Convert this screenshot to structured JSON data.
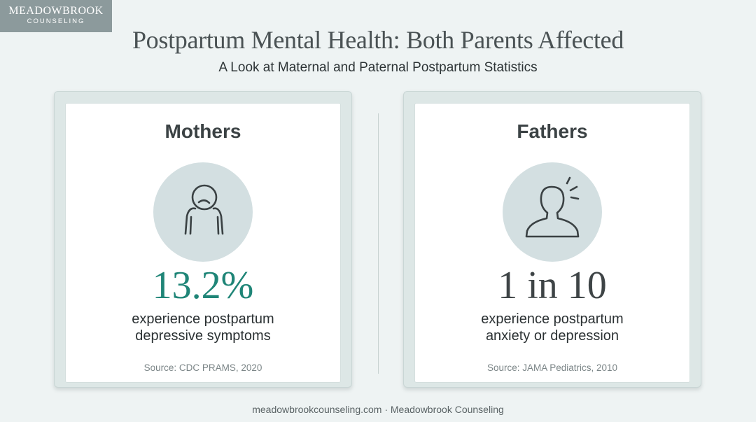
{
  "brand": {
    "name": "MEADOWBROOK",
    "sub": "COUNSELING"
  },
  "header": {
    "title": "Postpartum Mental Health: Both Parents Affected",
    "subtitle": "A Look at Maternal and Paternal Postpartum Statistics"
  },
  "cards": [
    {
      "heading": "Mothers",
      "icon": "sad-person-icon",
      "stat": "13.2%",
      "stat_color": "#1f8577",
      "desc_line1": "experience postpartum",
      "desc_line2": "depressive symptoms",
      "source": "Source: CDC PRAMS, 2020"
    },
    {
      "heading": "Fathers",
      "icon": "stressed-person-icon",
      "stat": "1 in 10",
      "stat_color": "#3e4446",
      "desc_line1": "experience postpartum",
      "desc_line2": "anxiety or depression",
      "source": "Source: JAMA Pediatrics, 2010"
    }
  ],
  "footer": {
    "text": "meadowbrookcounseling.com · Meadowbrook Counseling"
  },
  "colors": {
    "accent": "#1f8577",
    "background": "#eef3f3",
    "logo_bg": "#8c9a9c"
  }
}
